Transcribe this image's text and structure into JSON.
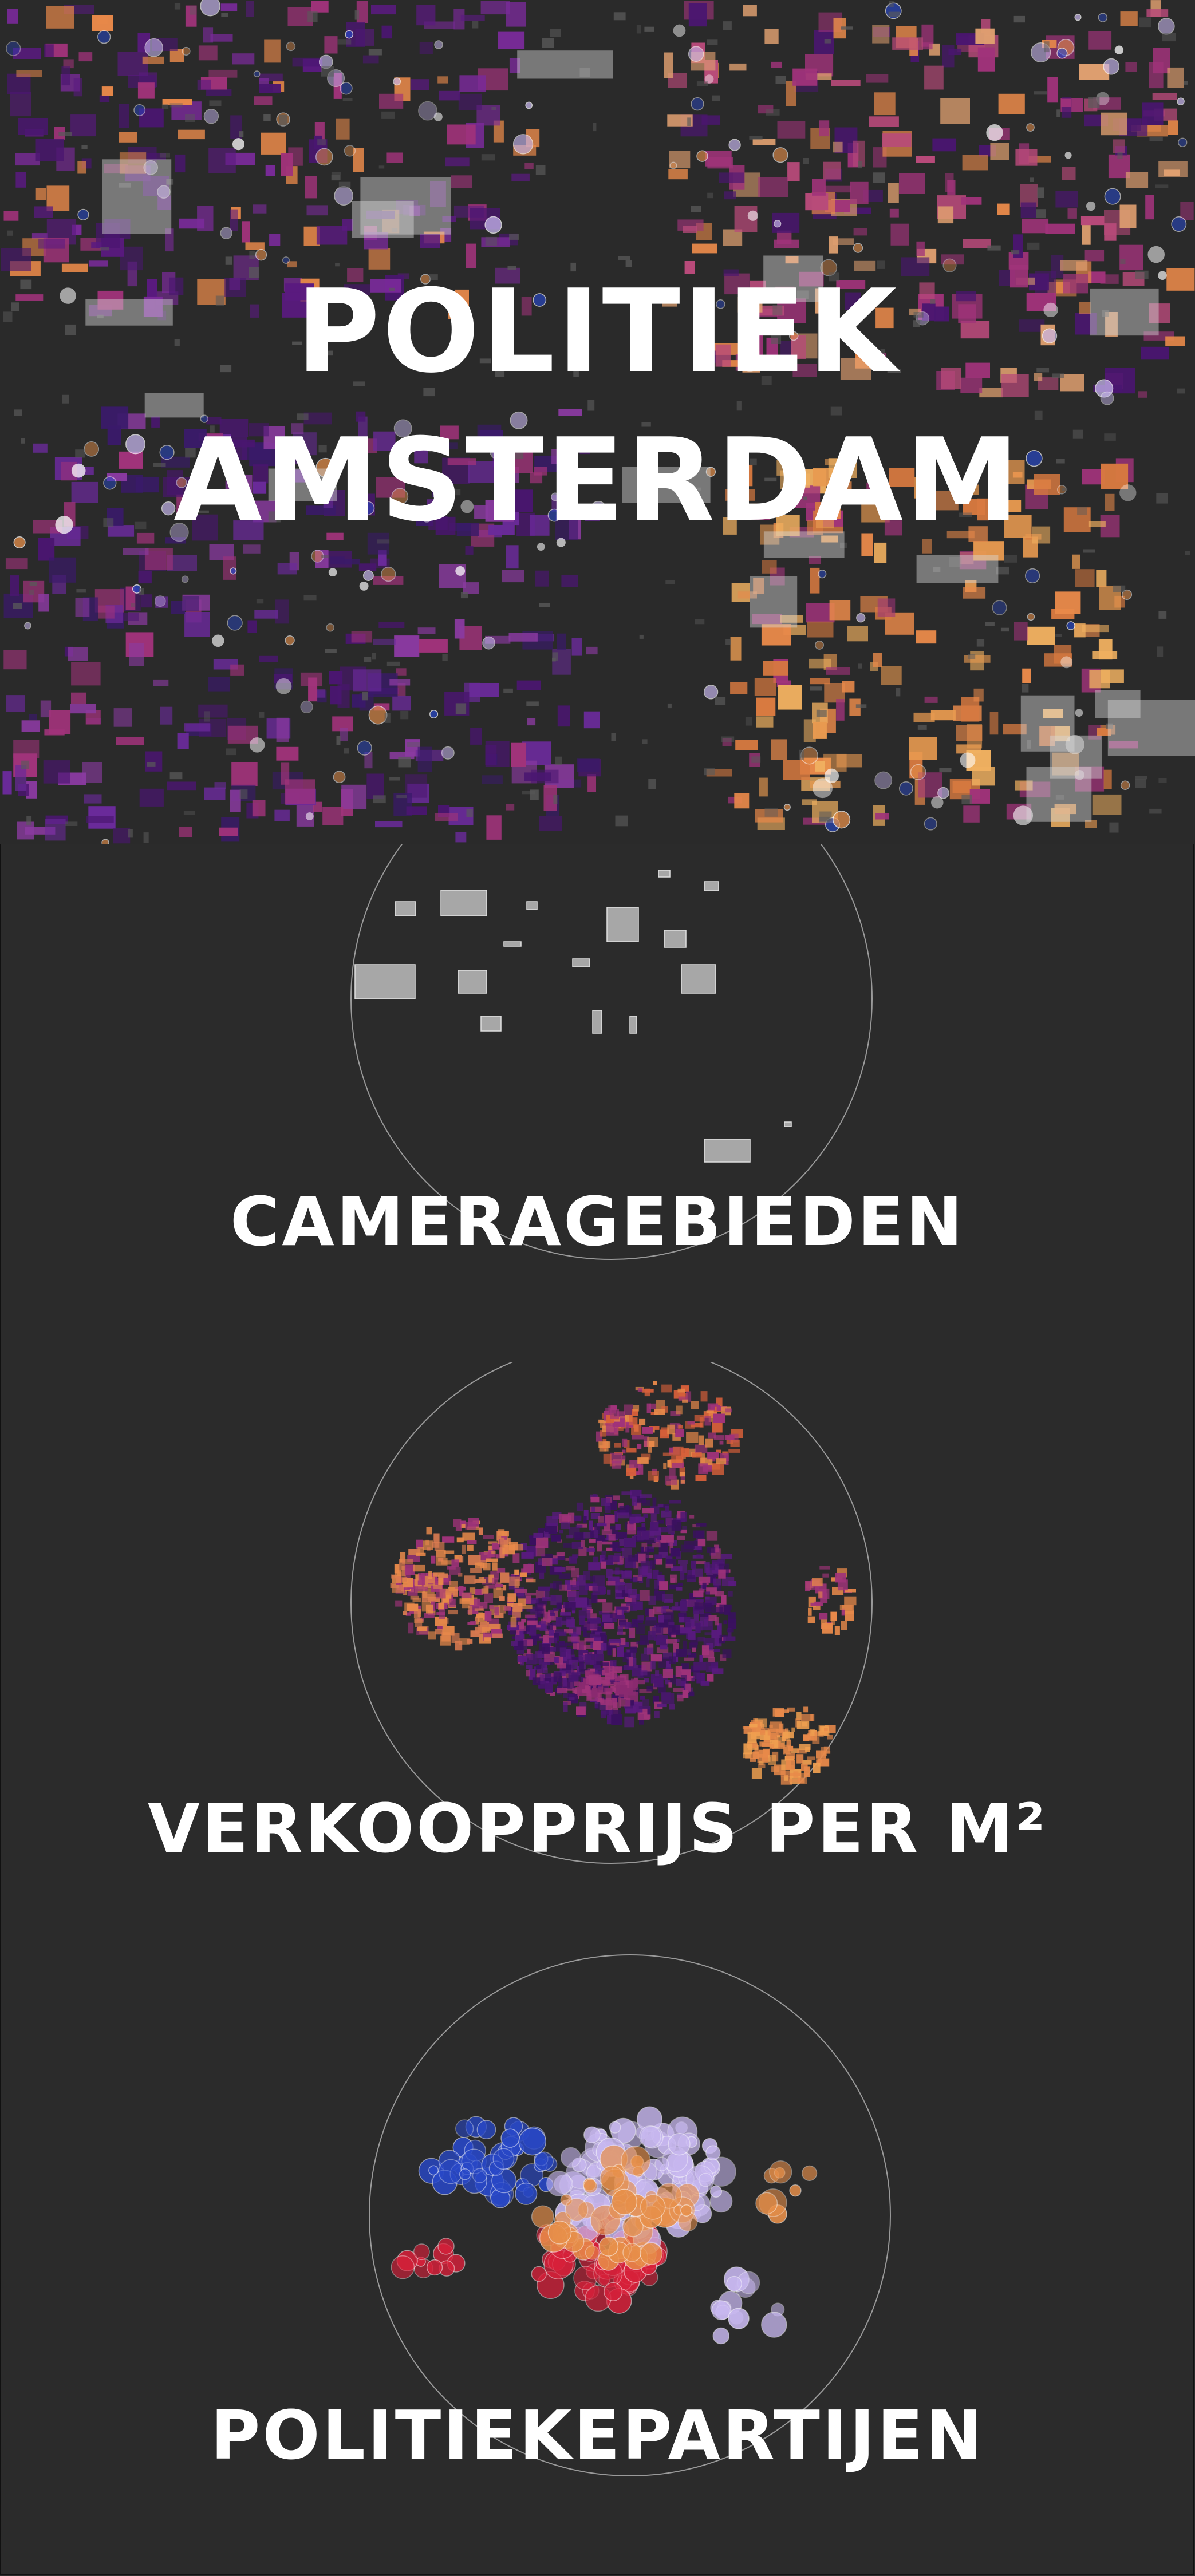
{
  "hero": {
    "title_line_1": "POLITIEK",
    "title_line_2": "AMSTERDAM"
  },
  "panels": [
    {
      "label": "CAMERAGEBIEDEN"
    },
    {
      "label": "VERKOOPPRIJS PER M²"
    },
    {
      "label": "POLITIEKEPARTIJEN"
    }
  ],
  "colors": {
    "background": "#2b2b2b",
    "title": "#ffffff",
    "circle_outline": "#9a9a9a",
    "camera_area": "#bdbdbd",
    "price_low": "#4a1670",
    "price_mid": "#a0337a",
    "price_high": "#e8894a",
    "party_red": "#d8203a",
    "party_blue": "#2848c8",
    "party_lavender": "#c8b8f0",
    "party_orange": "#e8904a"
  }
}
